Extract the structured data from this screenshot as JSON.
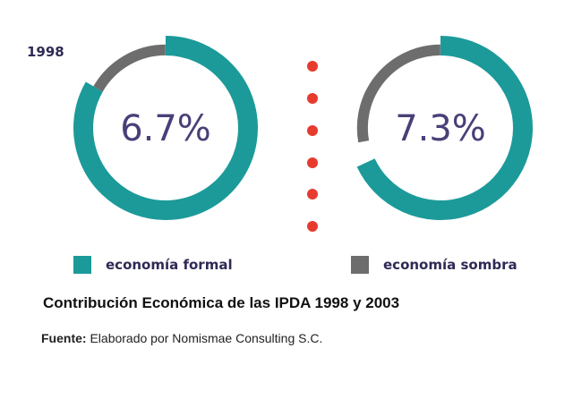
{
  "chart_data": [
    {
      "type": "pie",
      "year_label": "1998",
      "center_label": "6.7%",
      "slices": [
        {
          "label": "economía sombra",
          "value": 6.7
        },
        {
          "label": "economía formal",
          "value": 93.3
        }
      ]
    },
    {
      "type": "pie",
      "year_label": "",
      "center_label": "7.3%",
      "slices": [
        {
          "label": "economía sombra",
          "value": 7.3
        },
        {
          "label": "economía formal",
          "value": 92.7
        }
      ]
    }
  ],
  "legend": [
    {
      "label": "economía formal",
      "color": "#1c9a9a"
    },
    {
      "label": "economía sombra",
      "color": "#6d6d6d"
    }
  ],
  "caption": "Contribución Económica de las IPDA 1998 y 2003",
  "source": {
    "prefix": "Fuente:",
    "text": "Elaborado por Nomismae Consulting S.C."
  },
  "colors": {
    "formal": "#1c9a9a",
    "sombra": "#6d6d6d",
    "separator_dots": "#e63b2e",
    "center_text": "#4a3f78"
  }
}
